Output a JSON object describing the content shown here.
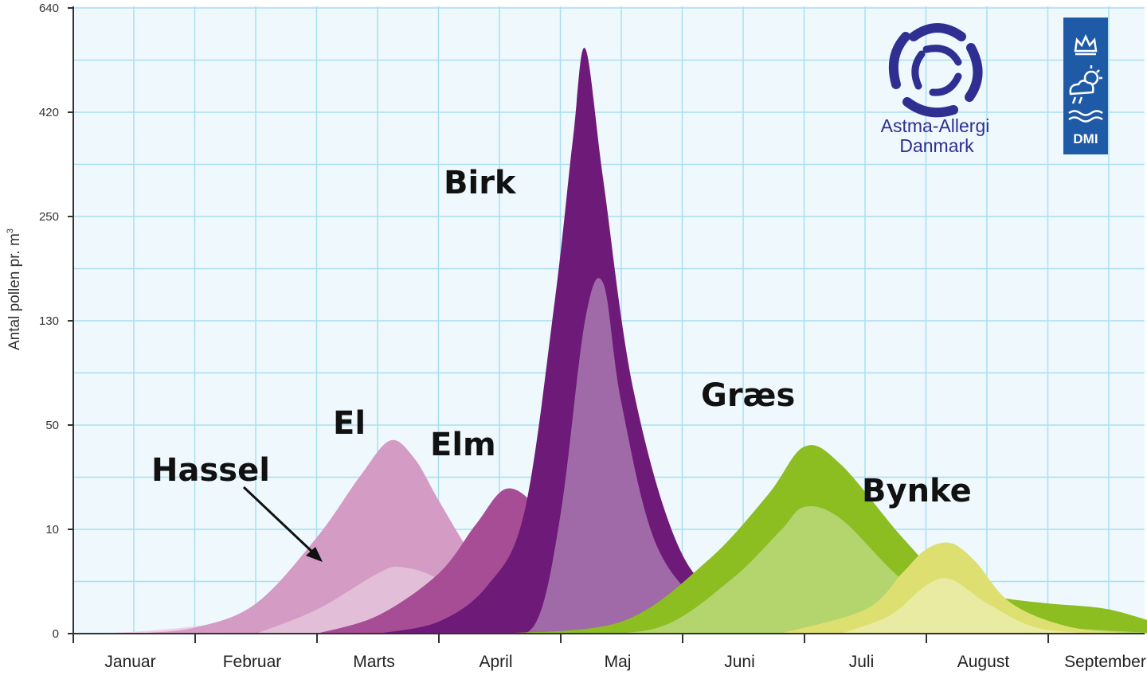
{
  "chart_data": {
    "type": "area",
    "title": "",
    "ylabel": "Antal pollen pr. m",
    "ylabel_superscript": "3",
    "y_ticks": [
      "0",
      "10",
      "50",
      "130",
      "250",
      "420",
      "640"
    ],
    "ylim": [
      0,
      640
    ],
    "y_scale": "non-linear (equal spacing between labeled ticks)",
    "months": [
      "Januar",
      "Februar",
      "Marts",
      "April",
      "Maj",
      "Juni",
      "Juli",
      "August",
      "September"
    ],
    "grid": true,
    "series": [
      {
        "name": "Hassel",
        "color": "#f0cde3",
        "peak_month": "Marts",
        "high_values_pct": [
          [
            0.0,
            0
          ],
          [
            0.5,
            0.3
          ],
          [
            1.0,
            1.2
          ],
          [
            1.5,
            2.8
          ],
          [
            2.0,
            5.5
          ],
          [
            2.3,
            7.5
          ],
          [
            2.5,
            7.0
          ],
          [
            3.0,
            4.5
          ],
          [
            3.5,
            2.0
          ],
          [
            4.0,
            0.5
          ],
          [
            4.5,
            0
          ]
        ],
        "low_values_pct": [
          [
            0.0,
            0
          ],
          [
            0.5,
            0
          ],
          [
            1.0,
            0.3
          ],
          [
            1.5,
            0.8
          ],
          [
            2.0,
            1.5
          ],
          [
            2.5,
            1.8
          ],
          [
            3.0,
            1.0
          ],
          [
            3.5,
            0.3
          ],
          [
            4.0,
            0
          ]
        ]
      },
      {
        "name": "El",
        "color": "#d49bc4",
        "peak_month": "Marts",
        "high_values_pct": [
          [
            0.5,
            0
          ],
          [
            1.0,
            1.0
          ],
          [
            1.5,
            5.0
          ],
          [
            2.0,
            16.0
          ],
          [
            2.35,
            26.0
          ],
          [
            2.6,
            32.0
          ],
          [
            2.8,
            29.0
          ],
          [
            3.0,
            22.0
          ],
          [
            3.3,
            12.0
          ],
          [
            3.6,
            4.0
          ],
          [
            4.0,
            0.5
          ],
          [
            4.5,
            0
          ]
        ],
        "low_values_pct": [
          [
            1.5,
            0
          ],
          [
            2.0,
            4.0
          ],
          [
            2.5,
            10.0
          ],
          [
            2.7,
            11.0
          ],
          [
            3.0,
            9.0
          ],
          [
            3.4,
            3.0
          ],
          [
            3.8,
            0
          ]
        ]
      },
      {
        "name": "Elm",
        "color": "#a64d96",
        "peak_month": "April",
        "high_values_pct": [
          [
            2.0,
            0
          ],
          [
            2.5,
            3.0
          ],
          [
            3.0,
            10.0
          ],
          [
            3.3,
            18.0
          ],
          [
            3.55,
            24.0
          ],
          [
            3.8,
            21.0
          ],
          [
            4.0,
            14.0
          ],
          [
            4.3,
            6.0
          ],
          [
            4.7,
            1.0
          ],
          [
            5.0,
            0
          ]
        ],
        "low_values_pct": [
          [
            2.8,
            0
          ],
          [
            3.3,
            0
          ],
          [
            3.6,
            2.0
          ],
          [
            4.0,
            3.0
          ],
          [
            4.4,
            1.0
          ],
          [
            4.8,
            0
          ]
        ]
      },
      {
        "name": "Birk",
        "color": "#6e1a78",
        "peak_month": "April/Maj",
        "high_values_pct": [
          [
            2.5,
            0
          ],
          [
            3.0,
            2.0
          ],
          [
            3.4,
            8.0
          ],
          [
            3.7,
            20.0
          ],
          [
            3.95,
            55.0
          ],
          [
            4.1,
            82.0
          ],
          [
            4.2,
            97.0
          ],
          [
            4.35,
            75.0
          ],
          [
            4.6,
            40.0
          ],
          [
            5.0,
            13.0
          ],
          [
            5.5,
            4.0
          ],
          [
            6.0,
            1.5
          ],
          [
            6.5,
            0
          ]
        ],
        "low_values_pct": [
          [
            3.1,
            0
          ],
          [
            3.5,
            0
          ],
          [
            3.8,
            2.0
          ],
          [
            4.0,
            20.0
          ],
          [
            4.2,
            52.0
          ],
          [
            4.35,
            58.0
          ],
          [
            4.5,
            38.0
          ],
          [
            4.8,
            14.0
          ],
          [
            5.3,
            3.0
          ],
          [
            5.8,
            1.0
          ],
          [
            6.4,
            0
          ]
        ]
      },
      {
        "name": "Græs",
        "color": "#8cbd21",
        "peak_month": "Juni",
        "high_values_pct": [
          [
            3.5,
            0
          ],
          [
            4.5,
            2.0
          ],
          [
            5.2,
            12.0
          ],
          [
            5.7,
            23.0
          ],
          [
            6.0,
            31.0
          ],
          [
            6.3,
            28.0
          ],
          [
            6.8,
            16.0
          ],
          [
            7.2,
            8.0
          ],
          [
            7.6,
            6.0
          ],
          [
            8.0,
            5.0
          ],
          [
            8.5,
            4.0
          ],
          [
            9.0,
            1.0
          ]
        ],
        "low_values_pct": [
          [
            4.0,
            0
          ],
          [
            4.8,
            1.0
          ],
          [
            5.4,
            9.0
          ],
          [
            5.8,
            17.0
          ],
          [
            6.0,
            21.0
          ],
          [
            6.3,
            19.0
          ],
          [
            6.8,
            9.0
          ],
          [
            7.3,
            3.0
          ],
          [
            7.8,
            1.5
          ],
          [
            8.5,
            0.5
          ],
          [
            9.0,
            0
          ]
        ]
      },
      {
        "name": "Bynke",
        "color": "#dde070",
        "peak_month": "August",
        "high_values_pct": [
          [
            5.8,
            0
          ],
          [
            6.5,
            4.0
          ],
          [
            6.8,
            10.0
          ],
          [
            7.0,
            14.0
          ],
          [
            7.2,
            15.0
          ],
          [
            7.4,
            12.0
          ],
          [
            7.7,
            5.0
          ],
          [
            8.2,
            1.0
          ],
          [
            8.8,
            0
          ]
        ],
        "low_values_pct": [
          [
            6.3,
            0
          ],
          [
            6.7,
            3.0
          ],
          [
            7.0,
            8.0
          ],
          [
            7.2,
            9.0
          ],
          [
            7.5,
            5.0
          ],
          [
            7.9,
            1.0
          ],
          [
            8.4,
            0
          ]
        ]
      }
    ],
    "annotations": [
      "Hassel",
      "El",
      "Elm",
      "Birk",
      "Græs",
      "Bynke"
    ]
  },
  "logos": {
    "astma": {
      "line1": "Astma-Allergi",
      "line2": "Danmark",
      "icon": "astma-allergi-knot-icon"
    },
    "dmi": {
      "text": "DMI",
      "icon": "dmi-crown-weather-icon"
    }
  },
  "colors": {
    "grid": "#a9dff1",
    "plot_bg": "#eef8fd",
    "axis": "#333333",
    "arrow": "#111111"
  }
}
